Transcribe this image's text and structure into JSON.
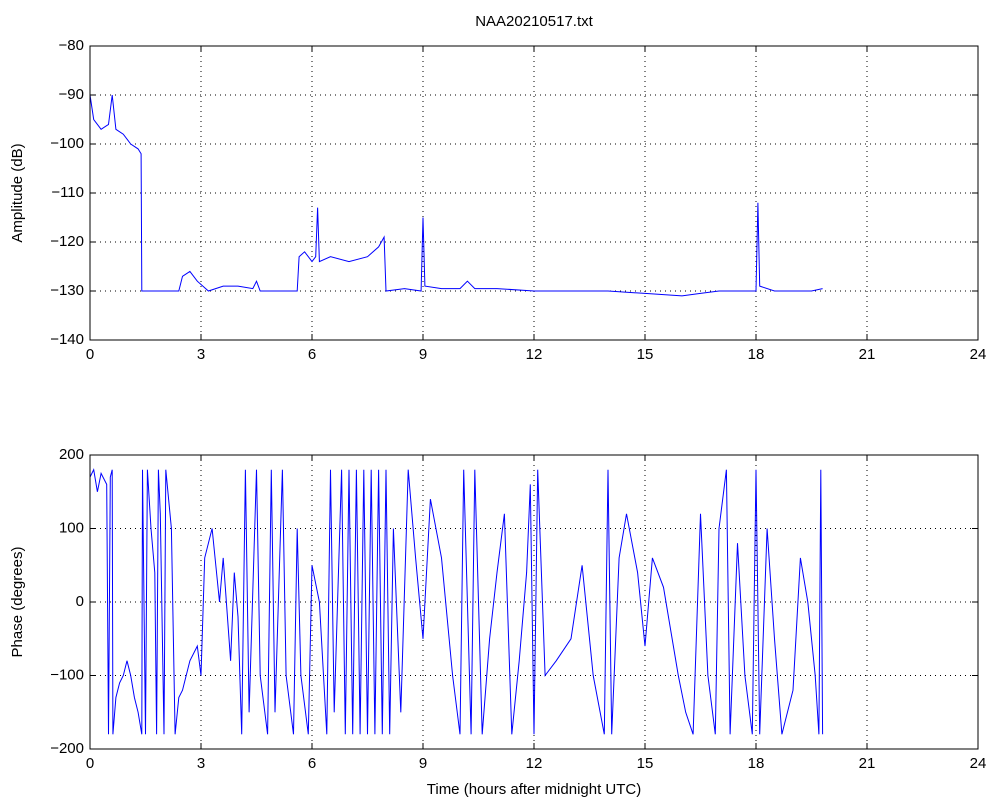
{
  "chart_data": [
    {
      "type": "line",
      "title": "NAA20210517.txt",
      "ylabel": "Amplitude (dB)",
      "color": "#0000ff",
      "grid": true,
      "xlim": [
        0,
        24
      ],
      "xticks": [
        0,
        3,
        6,
        9,
        12,
        15,
        18,
        21,
        24
      ],
      "ylim": [
        -140,
        -80
      ],
      "yticks": [
        {
          "value": -140,
          "label": "−140"
        },
        {
          "value": -130,
          "label": "−130"
        },
        {
          "value": -120,
          "label": "−120"
        },
        {
          "value": -110,
          "label": "−110"
        },
        {
          "value": -100,
          "label": "−100"
        },
        {
          "value": -90,
          "label": "−90"
        },
        {
          "value": -80,
          "label": "−80"
        }
      ],
      "x": [
        0,
        0.1,
        0.3,
        0.5,
        0.6,
        0.7,
        0.9,
        1.1,
        1.3,
        1.38,
        1.4,
        1.6,
        2.0,
        2.4,
        2.5,
        2.7,
        2.9,
        3.2,
        3.6,
        4.0,
        4.4,
        4.5,
        4.6,
        5.0,
        5.6,
        5.65,
        5.8,
        6.0,
        6.1,
        6.15,
        6.2,
        6.5,
        7.0,
        7.5,
        7.8,
        7.95,
        8.0,
        8.5,
        8.95,
        9.0,
        9.05,
        9.5,
        10.0,
        10.2,
        10.4,
        11,
        12,
        13,
        14,
        15,
        16,
        16.5,
        17,
        17.5,
        18,
        18.05,
        18.1,
        18.5,
        19,
        19.5,
        19.8
      ],
      "values": [
        -90,
        -95,
        -97,
        -96,
        -90,
        -97,
        -98,
        -100,
        -101,
        -102,
        -130,
        -130,
        -130,
        -130,
        -127,
        -126,
        -128,
        -130,
        -129,
        -129,
        -129.5,
        -128,
        -130,
        -130,
        -130,
        -123,
        -122,
        -124,
        -123,
        -113,
        -124,
        -123,
        -124,
        -123,
        -121,
        -119,
        -130,
        -129.5,
        -130,
        -115,
        -129,
        -129.5,
        -129.5,
        -128,
        -129.5,
        -129.5,
        -130,
        -130,
        -130,
        -130.5,
        -131,
        -130.5,
        -130,
        -130,
        -130,
        -112,
        -129,
        -130,
        -130,
        -130,
        -129.5
      ]
    },
    {
      "type": "line",
      "xlabel": "Time (hours after midnight UTC)",
      "ylabel": "Phase (degrees)",
      "color": "#0000ff",
      "grid": true,
      "xlim": [
        0,
        24
      ],
      "xticks": [
        0,
        3,
        6,
        9,
        12,
        15,
        18,
        21,
        24
      ],
      "ylim": [
        -200,
        200
      ],
      "yticks": [
        {
          "value": -200,
          "label": "−200"
        },
        {
          "value": -100,
          "label": "−100"
        },
        0,
        100,
        200
      ],
      "x": [
        0,
        0.1,
        0.2,
        0.3,
        0.45,
        0.5,
        0.55,
        0.6,
        0.62,
        0.7,
        0.8,
        0.9,
        1.0,
        1.1,
        1.2,
        1.3,
        1.4,
        1.42,
        1.5,
        1.55,
        1.65,
        1.75,
        1.8,
        1.85,
        1.9,
        2.0,
        2.05,
        2.2,
        2.3,
        2.4,
        2.5,
        2.7,
        2.9,
        3.0,
        3.1,
        3.3,
        3.5,
        3.6,
        3.8,
        3.9,
        4.0,
        4.1,
        4.2,
        4.3,
        4.5,
        4.6,
        4.8,
        4.9,
        5.0,
        5.2,
        5.3,
        5.5,
        5.6,
        5.7,
        5.9,
        6.0,
        6.2,
        6.4,
        6.5,
        6.6,
        6.8,
        6.9,
        7.0,
        7.1,
        7.2,
        7.3,
        7.4,
        7.5,
        7.6,
        7.7,
        7.8,
        7.9,
        8.0,
        8.1,
        8.2,
        8.4,
        8.6,
        8.8,
        9.0,
        9.2,
        9.5,
        9.8,
        10.0,
        10.1,
        10.3,
        10.4,
        10.6,
        10.8,
        11.0,
        11.2,
        11.4,
        11.6,
        11.8,
        11.9,
        12.0,
        12.1,
        12.3,
        12.6,
        13.0,
        13.3,
        13.6,
        13.9,
        14.0,
        14.1,
        14.3,
        14.5,
        14.8,
        15.0,
        15.2,
        15.5,
        15.9,
        16.1,
        16.3,
        16.5,
        16.7,
        16.9,
        17.0,
        17.2,
        17.3,
        17.5,
        17.7,
        17.9,
        18.0,
        18.1,
        18.3,
        18.5,
        18.7,
        19.0,
        19.2,
        19.4,
        19.6,
        19.7,
        19.75,
        19.8
      ],
      "values": [
        170,
        180,
        150,
        175,
        160,
        -180,
        170,
        180,
        -180,
        -130,
        -110,
        -100,
        -80,
        -100,
        -130,
        -150,
        -180,
        180,
        -180,
        180,
        100,
        40,
        -180,
        180,
        120,
        -180,
        180,
        100,
        -180,
        -130,
        -120,
        -80,
        -60,
        -100,
        60,
        100,
        0,
        60,
        -80,
        40,
        -20,
        -180,
        180,
        -150,
        180,
        -100,
        -180,
        180,
        -150,
        180,
        -100,
        -180,
        100,
        -100,
        -180,
        50,
        0,
        -180,
        180,
        -150,
        180,
        -180,
        180,
        -180,
        180,
        -180,
        180,
        -180,
        180,
        -180,
        180,
        -180,
        180,
        -180,
        100,
        -150,
        180,
        60,
        -50,
        140,
        60,
        -100,
        -180,
        180,
        -180,
        180,
        -180,
        -50,
        40,
        120,
        -180,
        -80,
        40,
        160,
        -180,
        180,
        -100,
        -80,
        -50,
        50,
        -100,
        -180,
        180,
        -180,
        60,
        120,
        40,
        -60,
        60,
        20,
        -100,
        -150,
        -180,
        120,
        -100,
        -180,
        100,
        180,
        -180,
        80,
        -100,
        -180,
        180,
        -180,
        100,
        -50,
        -180,
        -120,
        60,
        0,
        -100,
        -180,
        180,
        -180
      ]
    }
  ]
}
